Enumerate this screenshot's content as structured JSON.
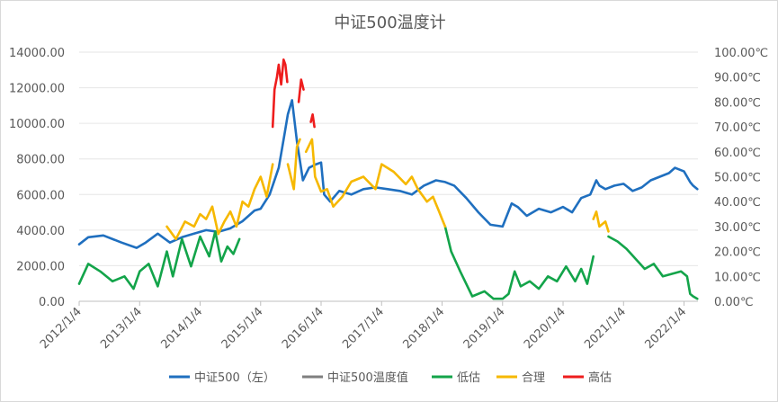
{
  "chart_data": {
    "type": "line",
    "title": "中证500温度计",
    "x_ticks": [
      "2012/1/4",
      "2013/1/4",
      "2014/1/4",
      "2015/1/4",
      "2016/1/4",
      "2017/1/4",
      "2018/1/4",
      "2019/1/4",
      "2020/1/4",
      "2021/1/4",
      "2022/1/4"
    ],
    "y_left": {
      "ticks": [
        "0.00",
        "2000.00",
        "4000.00",
        "6000.00",
        "8000.00",
        "10000.00",
        "12000.00",
        "14000.00"
      ],
      "range": [
        0,
        14000
      ]
    },
    "y_right": {
      "ticks": [
        "0.00℃",
        "10.00℃",
        "20.00℃",
        "30.00℃",
        "40.00℃",
        "50.00℃",
        "60.00℃",
        "70.00℃",
        "80.00℃",
        "90.00℃",
        "100.00℃"
      ],
      "range": [
        0,
        100
      ]
    },
    "legend_position": "bottom",
    "colors": {
      "index": "#1f6fbf",
      "temp": "#7f7f7f",
      "low": "#13a44a",
      "fair": "#f6b800",
      "high": "#ee1d1d"
    },
    "series": [
      {
        "name": "中证500（左）",
        "axis": "left",
        "color": "#1f6fbf",
        "x": [
          2012.0,
          2012.15,
          2012.4,
          2012.7,
          2012.95,
          2013.1,
          2013.3,
          2013.5,
          2013.7,
          2013.9,
          2014.1,
          2014.3,
          2014.5,
          2014.7,
          2014.9,
          2015.0,
          2015.15,
          2015.3,
          2015.4,
          2015.45,
          2015.52,
          2015.6,
          2015.7,
          2015.8,
          2015.92,
          2016.0,
          2016.05,
          2016.15,
          2016.3,
          2016.5,
          2016.7,
          2016.9,
          2017.1,
          2017.3,
          2017.5,
          2017.7,
          2017.9,
          2018.05,
          2018.2,
          2018.4,
          2018.6,
          2018.8,
          2019.0,
          2019.15,
          2019.25,
          2019.4,
          2019.6,
          2019.8,
          2020.0,
          2020.15,
          2020.3,
          2020.45,
          2020.55,
          2020.6,
          2020.7,
          2020.85,
          2021.0,
          2021.15,
          2021.3,
          2021.45,
          2021.6,
          2021.75,
          2021.85,
          2022.0,
          2022.1,
          2022.15,
          2022.22
        ],
        "y": [
          3200,
          3600,
          3700,
          3300,
          3000,
          3300,
          3800,
          3300,
          3600,
          3800,
          4000,
          3900,
          4100,
          4500,
          5100,
          5200,
          6000,
          7500,
          9500,
          10500,
          11300,
          9000,
          6800,
          7500,
          7700,
          7800,
          6000,
          5600,
          6200,
          6000,
          6300,
          6400,
          6300,
          6200,
          6000,
          6500,
          6800,
          6700,
          6500,
          5800,
          5000,
          4300,
          4200,
          5500,
          5300,
          4800,
          5200,
          5000,
          5300,
          5000,
          5800,
          6000,
          6800,
          6500,
          6300,
          6500,
          6600,
          6200,
          6400,
          6800,
          7000,
          7200,
          7500,
          7300,
          6700,
          6500,
          6300
        ]
      },
      {
        "name": "中证500温度值",
        "axis": "right",
        "color": "#7f7f7f",
        "x": [],
        "y": []
      },
      {
        "name": "低估",
        "axis": "right",
        "color": "#13a44a",
        "x": [
          2012.0,
          2012.15,
          2012.35,
          2012.55,
          2012.75,
          2012.9,
          2013.0,
          2013.15,
          2013.3,
          2013.45,
          2013.55,
          2013.7,
          2013.85,
          2014.0,
          2014.15,
          2014.25,
          2014.35,
          2014.45,
          2014.55,
          2014.65,
          null,
          2018.05,
          2018.15,
          2018.3,
          2018.5,
          2018.7,
          2018.85,
          2019.0,
          2019.1,
          2019.2,
          2019.3,
          2019.45,
          2019.6,
          2019.75,
          2019.9,
          2020.05,
          2020.2,
          2020.3,
          2020.4,
          2020.5,
          null,
          2020.75,
          2020.9,
          2021.05,
          2021.2,
          2021.35,
          2021.5,
          2021.65,
          2021.8,
          2021.95,
          2022.05,
          2022.1,
          2022.15,
          2022.22
        ],
        "y": [
          7,
          15,
          12,
          8,
          10,
          5,
          12,
          15,
          6,
          20,
          10,
          25,
          14,
          26,
          18,
          28,
          16,
          22,
          19,
          25,
          null,
          30,
          20,
          12,
          2,
          4,
          1,
          1,
          3,
          12,
          6,
          8,
          5,
          10,
          8,
          14,
          8,
          13,
          7,
          18,
          null,
          26,
          24,
          21,
          17,
          13,
          15,
          10,
          11,
          12,
          10,
          3,
          2,
          1
        ]
      },
      {
        "name": "合理",
        "axis": "right",
        "color": "#f6b800",
        "x": [
          2013.45,
          2013.6,
          2013.75,
          2013.9,
          2014.0,
          2014.1,
          2014.2,
          2014.3,
          2014.4,
          2014.5,
          2014.6,
          2014.7,
          2014.8,
          2014.9,
          2015.0,
          2015.1,
          2015.2,
          null,
          2015.45,
          2015.55,
          2015.6,
          2015.65,
          null,
          2015.75,
          2015.85,
          2015.9,
          2016.0,
          2016.1,
          2016.2,
          2016.35,
          2016.5,
          2016.7,
          2016.9,
          2017.0,
          2017.2,
          2017.4,
          2017.5,
          2017.6,
          2017.75,
          2017.85,
          2017.95,
          2018.0,
          2018.05,
          null,
          2020.5,
          2020.55,
          2020.6,
          2020.7,
          2020.75
        ],
        "y": [
          30,
          25,
          32,
          30,
          35,
          33,
          38,
          27,
          32,
          36,
          30,
          40,
          38,
          45,
          50,
          42,
          55,
          null,
          55,
          45,
          62,
          65,
          null,
          60,
          65,
          50,
          44,
          45,
          38,
          42,
          48,
          50,
          45,
          55,
          52,
          47,
          50,
          45,
          40,
          42,
          36,
          33,
          30,
          null,
          33,
          36,
          30,
          32,
          28
        ]
      },
      {
        "name": "高估",
        "axis": "right",
        "color": "#ee1d1d",
        "x": [
          2015.2,
          2015.23,
          2015.27,
          2015.3,
          2015.34,
          2015.38,
          2015.41,
          2015.44,
          null,
          2015.63,
          2015.67,
          2015.71,
          null,
          2015.83,
          2015.86,
          2015.89
        ],
        "y": [
          70,
          85,
          90,
          95,
          87,
          97,
          95,
          88,
          null,
          80,
          89,
          85,
          null,
          72,
          75,
          70
        ]
      }
    ]
  }
}
